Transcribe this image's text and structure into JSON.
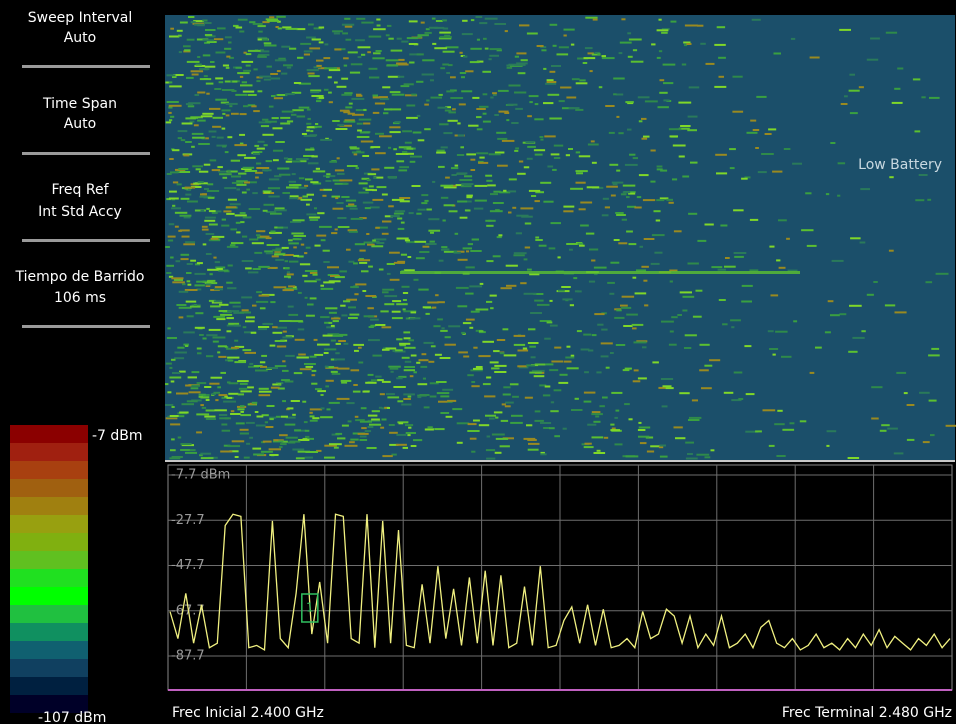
{
  "menu": [
    {
      "label": "Sweep Interval",
      "value": "Auto"
    },
    {
      "label": "Time Span",
      "value": "Auto"
    },
    {
      "label": "Freq Ref",
      "value": "Int Std Accy"
    },
    {
      "label": "Tiempo de Barrido",
      "value": "106 ms"
    }
  ],
  "status": "Low Battery",
  "colorbar": {
    "max_label": "-7 dBm",
    "min_label": "-107 dBm"
  },
  "marker": {
    "label": "1"
  },
  "chart_data": {
    "type": "line",
    "color": "#f0f080",
    "start_label": "Frec Inicial 2.400 GHz",
    "stop_label": "Frec Terminal 2.480 GHz",
    "ylim": [
      -102.7,
      -7.7
    ],
    "yticks": [
      {
        "value": -7.7,
        "label": "-7.7 dBm"
      },
      -27.7,
      -47.7,
      -67.7,
      -87.7
    ],
    "grid": true,
    "values": [
      -68,
      -80,
      -60,
      -82,
      -65,
      -84,
      -82,
      -30,
      -25,
      -26,
      -84,
      -83,
      -85,
      -28,
      -80,
      -84,
      -60,
      -25,
      -78,
      -55,
      -82,
      -25,
      -26,
      -80,
      -82,
      -25,
      -84,
      -28,
      -82,
      -32,
      -83,
      -84,
      -56,
      -82,
      -48,
      -80,
      -58,
      -83,
      -53,
      -82,
      -50,
      -83,
      -52,
      -84,
      -82,
      -57,
      -83,
      -48,
      -84,
      -83,
      -72,
      -66,
      -82,
      -65,
      -83,
      -67,
      -84,
      -83,
      -80,
      -84,
      -68,
      -80,
      -78,
      -67,
      -70,
      -82,
      -70,
      -84,
      -78,
      -83,
      -70,
      -84,
      -82,
      -78,
      -84,
      -75,
      -72,
      -82,
      -84,
      -80,
      -85,
      -83,
      -78,
      -84,
      -82,
      -85,
      -80,
      -84,
      -78,
      -83,
      -76,
      -84,
      -79,
      -82,
      -85,
      -80,
      -83,
      -78,
      -84,
      -80
    ]
  }
}
